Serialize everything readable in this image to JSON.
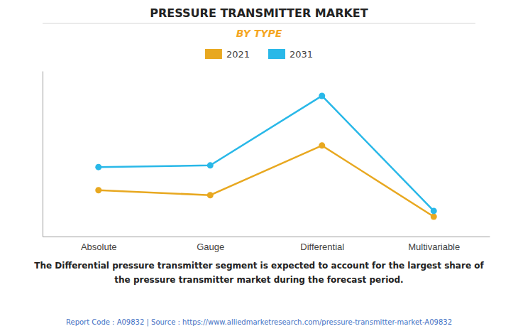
{
  "chart_data": {
    "type": "line",
    "title": "PRESSURE TRANSMITTER MARKET",
    "subtitle": "BY TYPE",
    "categories": [
      "Absolute",
      "Gauge",
      "Differential",
      "Multivariable"
    ],
    "series": [
      {
        "name": "2021",
        "color": "#E8A820",
        "values": [
          2.8,
          2.5,
          5.5,
          1.2
        ]
      },
      {
        "name": "2031",
        "color": "#29B8E8",
        "values": [
          4.2,
          4.3,
          8.5,
          1.55
        ]
      }
    ],
    "ylim": [
      0,
      10
    ],
    "tick_labels": "x",
    "grid": false,
    "legend": "top",
    "marker": "circle",
    "annotations": [
      "The Differential pressure transmitter segment is expected to account for the largest share of",
      "the pressure transmitter market during the forecast period.",
      "Report Code : A09832  |  Source : https://www.alliedmarketresearch.com/pressure-transmitter-market-A09832"
    ]
  }
}
